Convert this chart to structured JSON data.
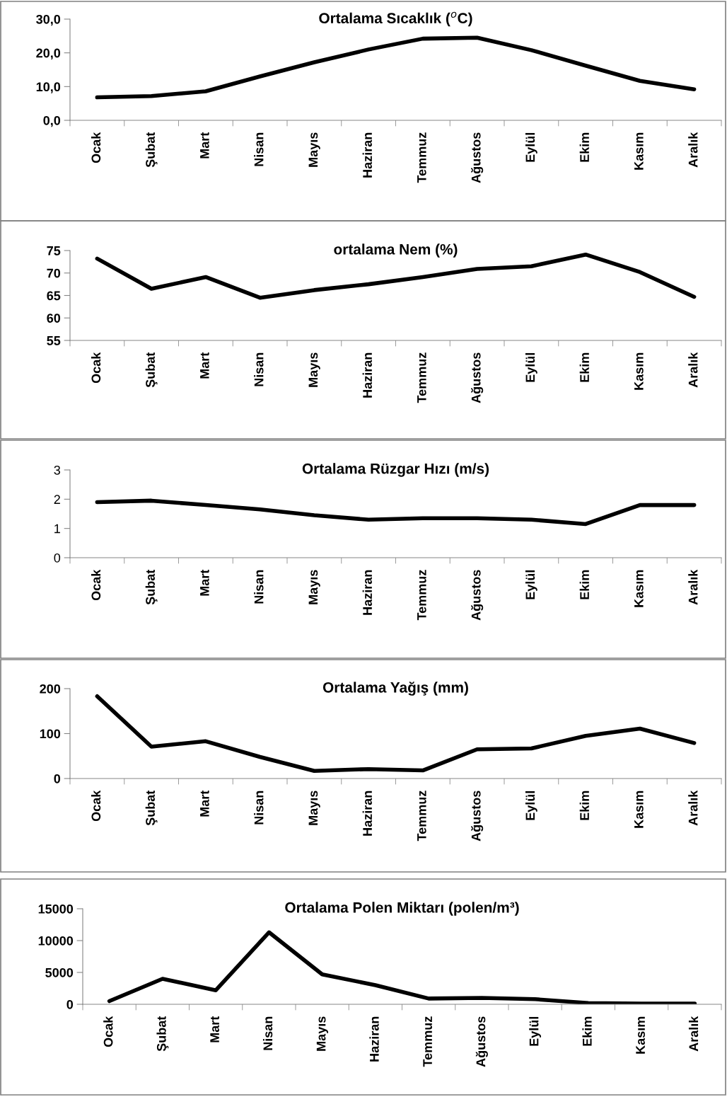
{
  "chart_data": [
    {
      "type": "line",
      "title": "Ortalama Sıcaklık ($^{o}$C)",
      "categories": [
        "Ocak",
        "Şubat",
        "Mart",
        "Nisan",
        "Mayıs",
        "Haziran",
        "Temmuz",
        "Ağustos",
        "Eylül",
        "Ekim",
        "Kasım",
        "Aralık"
      ],
      "series": [
        {
          "color": "#000000",
          "values": [
            6.8,
            7.2,
            8.6,
            13.0,
            17.2,
            21.0,
            24.2,
            24.5,
            20.8,
            16.2,
            11.7,
            9.2
          ]
        }
      ],
      "ylim": [
        0,
        30
      ],
      "yticks": [
        {
          "value": 0,
          "label": "0,0"
        },
        {
          "value": 10,
          "label": "10,0"
        },
        {
          "value": 20,
          "label": "20,0"
        },
        {
          "value": 30,
          "label": "30,0"
        }
      ],
      "grid": false,
      "legend": false,
      "marker": "none",
      "line_style": "solid"
    },
    {
      "type": "line",
      "title": "ortalama Nem (%)",
      "categories": [
        "Ocak",
        "Şubat",
        "Mart",
        "Nisan",
        "Mayıs",
        "Haziran",
        "Temmuz",
        "Ağustos",
        "Eylül",
        "Ekim",
        "Kasım",
        "Aralık"
      ],
      "series": [
        {
          "color": "#000000",
          "values": [
            73.2,
            66.5,
            69.1,
            64.5,
            66.2,
            67.5,
            69.1,
            70.9,
            71.5,
            74.1,
            70.2,
            64.7
          ]
        }
      ],
      "ylim": [
        55,
        75
      ],
      "yticks": [
        55,
        60,
        65,
        70,
        75
      ],
      "grid": false,
      "legend": false,
      "marker": "none",
      "line_style": "solid"
    },
    {
      "type": "line",
      "title": "Ortalama Rüzgar Hızı (m/s)",
      "categories": [
        "Ocak",
        "Şubat",
        "Mart",
        "Nisan",
        "Mayıs",
        "Haziran",
        "Temmuz",
        "Ağustos",
        "Eylül",
        "Ekim",
        "Kasım",
        "Aralık"
      ],
      "series": [
        {
          "color": "#000000",
          "values": [
            1.9,
            1.95,
            1.8,
            1.65,
            1.45,
            1.3,
            1.35,
            1.35,
            1.3,
            1.15,
            1.8,
            1.8
          ]
        }
      ],
      "ylim": [
        0,
        3
      ],
      "yticks": [
        0,
        1,
        2,
        3
      ],
      "grid": false,
      "legend": false,
      "marker": "none",
      "line_style": "solid"
    },
    {
      "type": "line",
      "title": "Ortalama Yağış (mm)",
      "categories": [
        "Ocak",
        "Şubat",
        "Mart",
        "Nisan",
        "Mayıs",
        "Haziran",
        "Temmuz",
        "Ağustos",
        "Eylül",
        "Ekim",
        "Kasım",
        "Aralık"
      ],
      "series": [
        {
          "color": "#000000",
          "values": [
            183,
            71,
            83,
            48,
            17,
            21,
            18,
            65,
            67,
            95,
            111,
            79
          ]
        }
      ],
      "ylim": [
        0,
        200
      ],
      "yticks": [
        0,
        100,
        200
      ],
      "grid": false,
      "legend": false,
      "marker": "none",
      "line_style": "solid"
    },
    {
      "type": "line",
      "title": "Ortalama Polen Miktarı (polen/m³)",
      "categories": [
        "Ocak",
        "Şubat",
        "Mart",
        "Nisan",
        "Mayıs",
        "Haziran",
        "Temmuz",
        "Ağustos",
        "Eylül",
        "Ekim",
        "Kasım",
        "Aralık"
      ],
      "series": [
        {
          "color": "#000000",
          "values": [
            500,
            4000,
            2200,
            11300,
            4700,
            3000,
            900,
            1000,
            800,
            200,
            100,
            100
          ]
        }
      ],
      "ylim": [
        0,
        15000
      ],
      "yticks": [
        0,
        5000,
        10000,
        15000
      ],
      "grid": false,
      "legend": false,
      "marker": "none",
      "line_style": "solid"
    }
  ]
}
